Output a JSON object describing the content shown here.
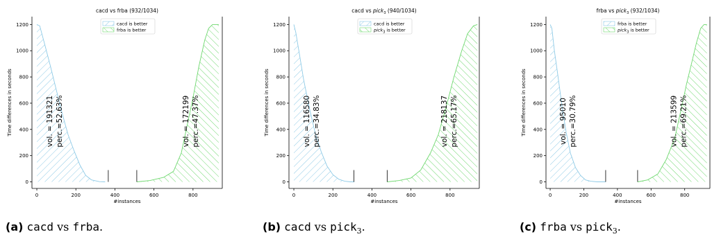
{
  "colors": {
    "left": "#8ecae6",
    "right": "#6fd86f",
    "axis": "#000000"
  },
  "chart_data": [
    {
      "type": "area",
      "title": "cacd vs frba (932/1034)",
      "xlabel": "#instances",
      "ylabel": "Time differences in seconds",
      "xlim": [
        -25,
        950
      ],
      "ylim": [
        -50,
        1260
      ],
      "xticks": [
        "0",
        "200",
        "400",
        "600",
        "800"
      ],
      "yticks": [
        "0",
        "200",
        "400",
        "600",
        "800",
        "1000",
        "1200"
      ],
      "legend": {
        "placement": "top-center",
        "entries": [
          "cacd is better",
          "frba is better"
        ]
      },
      "series": [
        {
          "name": "cacd is better",
          "x": [
            0,
            15,
            40,
            70,
            100,
            130,
            160,
            190,
            220,
            250,
            280,
            320,
            350
          ],
          "values": [
            1200,
            1190,
            1050,
            880,
            700,
            520,
            360,
            240,
            130,
            50,
            15,
            2,
            0
          ]
        },
        {
          "name": "frba is better",
          "x": [
            512,
            580,
            650,
            700,
            740,
            770,
            800,
            830,
            860,
            880,
            900,
            932
          ],
          "values": [
            0,
            10,
            35,
            80,
            220,
            430,
            640,
            880,
            1080,
            1170,
            1200,
            1200
          ]
        }
      ],
      "vlines": [
        {
          "x": 366,
          "y": 90
        },
        {
          "x": 512,
          "y": 90
        }
      ],
      "annotations": {
        "left": {
          "vol": "vol. = 191321",
          "perc": "perc.=52.63%"
        },
        "right": {
          "vol": "vol. = 172199",
          "perc": "perc.=47.37%"
        }
      }
    },
    {
      "type": "area",
      "title": "cacd vs pick3 (940/1034)",
      "xlabel": "#instances",
      "ylabel": "Time differences in seconds",
      "xlim": [
        -25,
        950
      ],
      "ylim": [
        -50,
        1260
      ],
      "xticks": [
        "0",
        "200",
        "400",
        "600",
        "800"
      ],
      "yticks": [
        "0",
        "200",
        "400",
        "600",
        "800",
        "1000",
        "1200"
      ],
      "legend": {
        "placement": "top-center",
        "entries": [
          "cacd is better",
          "pick3 is better"
        ]
      },
      "series": [
        {
          "name": "cacd is better",
          "x": [
            0,
            10,
            30,
            50,
            80,
            110,
            140,
            170,
            200,
            230,
            260,
            290,
            310
          ],
          "values": [
            1200,
            1140,
            960,
            780,
            560,
            370,
            230,
            120,
            55,
            20,
            5,
            0,
            0
          ]
        },
        {
          "name": "pick3 is better",
          "x": [
            478,
            540,
            600,
            650,
            700,
            740,
            780,
            820,
            860,
            890,
            920,
            940
          ],
          "values": [
            0,
            10,
            30,
            90,
            220,
            360,
            570,
            800,
            1000,
            1130,
            1190,
            1200
          ]
        }
      ],
      "vlines": [
        {
          "x": 308,
          "y": 90
        },
        {
          "x": 478,
          "y": 90
        }
      ],
      "annotations": {
        "left": {
          "vol": "vol. = 116580",
          "perc": "perc.=34.83%"
        },
        "right": {
          "vol": "vol. = 218137",
          "perc": "perc.=65.17%"
        }
      }
    },
    {
      "type": "area",
      "title": "frba vs pick3 (932/1034)",
      "xlabel": "#instances",
      "ylabel": "Time differences in seconds",
      "xlim": [
        -25,
        950
      ],
      "ylim": [
        -50,
        1260
      ],
      "xticks": [
        "0",
        "200",
        "400",
        "600",
        "800"
      ],
      "yticks": [
        "0",
        "200",
        "400",
        "600",
        "800",
        "1000",
        "1200"
      ],
      "legend": {
        "placement": "top-center",
        "entries": [
          "frba is better",
          "pick3 is better"
        ]
      },
      "series": [
        {
          "name": "frba is better",
          "x": [
            0,
            10,
            25,
            45,
            70,
            95,
            120,
            150,
            180,
            210,
            240,
            280,
            330
          ],
          "values": [
            1200,
            1170,
            1000,
            820,
            580,
            380,
            220,
            110,
            50,
            15,
            5,
            0,
            0
          ]
        },
        {
          "name": "pick3 is better",
          "x": [
            520,
            580,
            640,
            690,
            740,
            780,
            810,
            840,
            870,
            895,
            915,
            932
          ],
          "values": [
            0,
            15,
            60,
            170,
            330,
            560,
            740,
            900,
            1060,
            1170,
            1200,
            1200
          ]
        }
      ],
      "vlines": [
        {
          "x": 330,
          "y": 90
        },
        {
          "x": 520,
          "y": 90
        }
      ],
      "annotations": {
        "left": {
          "vol": "vol. = 95010",
          "perc": "perc.=30.79%"
        },
        "right": {
          "vol": "vol. = 213599",
          "perc": "perc.=69.21%"
        }
      }
    }
  ],
  "captions": [
    {
      "label": "(a)",
      "a": "cacd",
      "vs": "vs",
      "b": "frba",
      "sub": "",
      "end": "."
    },
    {
      "label": "(b)",
      "a": "cacd",
      "vs": "vs",
      "b": "pick",
      "sub": "3",
      "end": "."
    },
    {
      "label": "(c)",
      "a": "frba",
      "vs": "vs",
      "b": "pick",
      "sub": "3",
      "end": "."
    }
  ]
}
